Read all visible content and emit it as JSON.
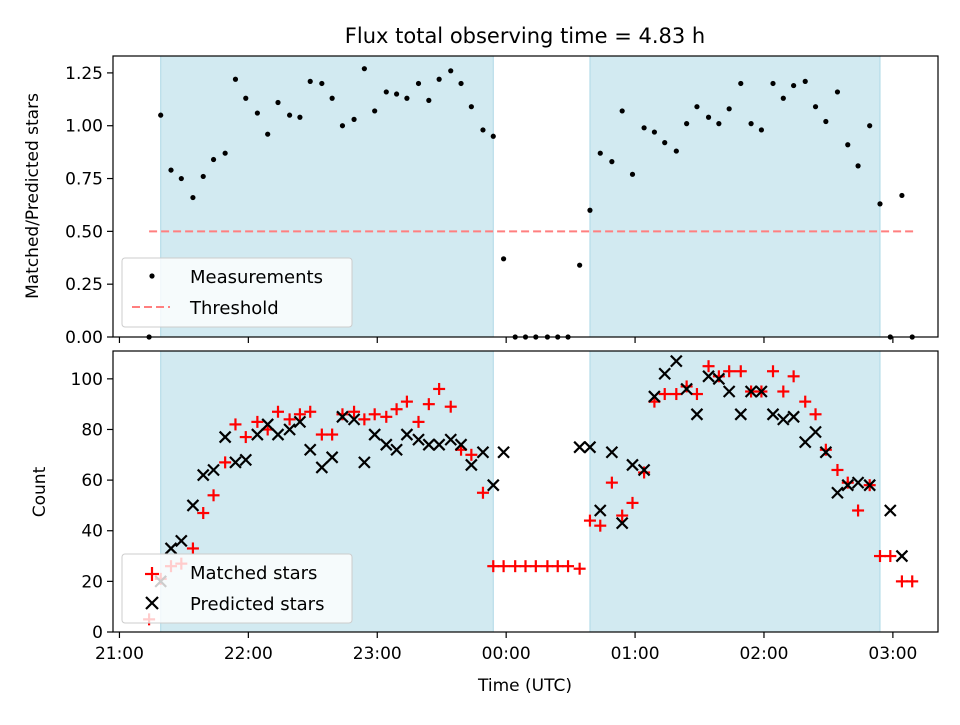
{
  "title": "Flux total observing time = 4.83 h",
  "colors": {
    "shade": "#add8e6",
    "threshold": "#ff7f7f",
    "matched": "#ff0000",
    "predicted": "#000000",
    "measurement": "#000000"
  },
  "chart_data": [
    {
      "type": "scatter",
      "title": "Flux total observing time = 4.83 h",
      "ylabel": "Matched/Predicted stars",
      "xlabel": "",
      "xlim": [
        -0.05,
        6.35
      ],
      "ylim": [
        0,
        1.33
      ],
      "xticks": [
        0,
        1,
        2,
        3,
        4,
        5,
        6
      ],
      "xtick_labels": [],
      "yticks": [
        0,
        0.25,
        0.5,
        0.75,
        1.0,
        1.25
      ],
      "ytick_labels": [
        "0.00",
        "0.25",
        "0.50",
        "0.75",
        "1.00",
        "1.25"
      ],
      "grid": false,
      "legend_position": "lower-left",
      "shaded_intervals_hours_after_21": [
        [
          0.32,
          2.9
        ],
        [
          3.65,
          5.9
        ]
      ],
      "threshold": {
        "name": "Threshold",
        "y": 0.5,
        "x_range_hours_after_21": [
          0.23,
          6.17
        ]
      },
      "series": [
        {
          "name": "Measurements",
          "marker": "dot",
          "x_hours_after_21": [
            0.23,
            0.32,
            0.4,
            0.48,
            0.57,
            0.65,
            0.73,
            0.82,
            0.9,
            0.98,
            1.07,
            1.15,
            1.23,
            1.32,
            1.4,
            1.48,
            1.57,
            1.65,
            1.73,
            1.82,
            1.9,
            1.98,
            2.07,
            2.15,
            2.23,
            2.32,
            2.4,
            2.48,
            2.57,
            2.65,
            2.73,
            2.82,
            2.9,
            2.98,
            3.07,
            3.15,
            3.23,
            3.32,
            3.4,
            3.48,
            3.57,
            3.65,
            3.73,
            3.82,
            3.9,
            3.98,
            4.07,
            4.15,
            4.23,
            4.32,
            4.4,
            4.48,
            4.57,
            4.65,
            4.73,
            4.82,
            4.9,
            4.98,
            5.07,
            5.15,
            5.23,
            5.32,
            5.4,
            5.48,
            5.57,
            5.65,
            5.73,
            5.82,
            5.9,
            5.98,
            6.07,
            6.15
          ],
          "y": [
            0.0,
            1.05,
            0.79,
            0.75,
            0.66,
            0.76,
            0.84,
            0.87,
            1.22,
            1.13,
            1.06,
            0.96,
            1.11,
            1.05,
            1.04,
            1.21,
            1.2,
            1.13,
            1.0,
            1.03,
            1.27,
            1.07,
            1.16,
            1.15,
            1.13,
            1.2,
            1.12,
            1.22,
            1.26,
            1.2,
            1.09,
            0.98,
            0.95,
            0.37,
            0.0,
            0.0,
            0.0,
            0.0,
            0.0,
            0.0,
            0.34,
            0.6,
            0.87,
            0.83,
            1.07,
            0.77,
            0.99,
            0.97,
            0.92,
            0.88,
            1.01,
            1.09,
            1.04,
            1.01,
            1.08,
            1.2,
            1.01,
            0.98,
            1.2,
            1.13,
            1.19,
            1.21,
            1.09,
            1.02,
            1.16,
            0.91,
            0.81,
            1.0,
            0.63,
            0.0,
            0.67,
            0.0
          ]
        }
      ]
    },
    {
      "type": "scatter",
      "title": "",
      "xlabel": "Time (UTC)",
      "ylabel": "Count",
      "xlim": [
        -0.05,
        6.35
      ],
      "ylim": [
        0,
        111
      ],
      "xticks": [
        0,
        1,
        2,
        3,
        4,
        5,
        6
      ],
      "xtick_labels": [
        "21:00",
        "22:00",
        "23:00",
        "00:00",
        "01:00",
        "02:00",
        "03:00"
      ],
      "yticks": [
        0,
        20,
        40,
        60,
        80,
        100
      ],
      "ytick_labels": [
        "0",
        "20",
        "40",
        "60",
        "80",
        "100"
      ],
      "grid": false,
      "legend_position": "lower-left",
      "shaded_intervals_hours_after_21": [
        [
          0.32,
          2.9
        ],
        [
          3.65,
          5.9
        ]
      ],
      "series": [
        {
          "name": "Matched stars",
          "marker": "plus",
          "x_hours_after_21": [
            0.23,
            0.32,
            0.4,
            0.48,
            0.57,
            0.65,
            0.73,
            0.82,
            0.9,
            0.98,
            1.07,
            1.15,
            1.23,
            1.32,
            1.4,
            1.48,
            1.57,
            1.65,
            1.73,
            1.82,
            1.9,
            1.98,
            2.07,
            2.15,
            2.23,
            2.32,
            2.4,
            2.48,
            2.57,
            2.65,
            2.73,
            2.82,
            2.9,
            2.98,
            3.07,
            3.15,
            3.23,
            3.32,
            3.4,
            3.48,
            3.57,
            3.65,
            3.73,
            3.82,
            3.9,
            3.98,
            4.07,
            4.15,
            4.23,
            4.32,
            4.4,
            4.48,
            4.57,
            4.65,
            4.73,
            4.82,
            4.9,
            4.98,
            5.07,
            5.15,
            5.23,
            5.32,
            5.4,
            5.48,
            5.57,
            5.65,
            5.73,
            5.82,
            5.9,
            5.98,
            6.07,
            6.15
          ],
          "y": [
            5,
            21,
            26,
            27,
            33,
            47,
            54,
            67,
            82,
            77,
            83,
            80,
            87,
            84,
            86,
            87,
            78,
            78,
            86,
            87,
            84,
            86,
            85,
            88,
            91,
            83,
            90,
            96,
            89,
            72,
            70,
            55,
            26,
            26,
            26,
            26,
            26,
            26,
            26,
            26,
            25,
            44,
            42,
            59,
            46,
            51,
            63,
            91,
            94,
            94,
            97,
            94,
            105,
            101,
            103,
            103,
            95,
            95,
            103,
            95,
            101,
            91,
            86,
            72,
            64,
            59,
            48,
            58,
            30,
            30,
            20,
            20
          ]
        },
        {
          "name": "Predicted stars",
          "marker": "x",
          "x_hours_after_21": [
            0.32,
            0.4,
            0.48,
            0.57,
            0.65,
            0.73,
            0.82,
            0.9,
            0.98,
            1.07,
            1.15,
            1.23,
            1.32,
            1.4,
            1.48,
            1.57,
            1.65,
            1.73,
            1.82,
            1.9,
            1.98,
            2.07,
            2.15,
            2.23,
            2.32,
            2.4,
            2.48,
            2.57,
            2.65,
            2.73,
            2.82,
            2.9,
            2.98,
            3.57,
            3.65,
            3.73,
            3.82,
            3.9,
            3.98,
            4.07,
            4.15,
            4.23,
            4.32,
            4.4,
            4.48,
            4.57,
            4.65,
            4.73,
            4.82,
            4.9,
            4.98,
            5.07,
            5.15,
            5.23,
            5.32,
            5.4,
            5.48,
            5.57,
            5.65,
            5.73,
            5.82,
            5.98,
            6.07
          ],
          "y": [
            20,
            33,
            36,
            50,
            62,
            64,
            77,
            67,
            68,
            78,
            82,
            78,
            80,
            83,
            72,
            65,
            69,
            85,
            84,
            67,
            78,
            74,
            72,
            78,
            76,
            74,
            74,
            76,
            74,
            66,
            71,
            58,
            71,
            73,
            73,
            48,
            71,
            43,
            66,
            64,
            93,
            102,
            107,
            96,
            86,
            101,
            100,
            95,
            86,
            95,
            95,
            86,
            84,
            85,
            75,
            79,
            71,
            55,
            58,
            59,
            58,
            48,
            30
          ]
        }
      ]
    }
  ]
}
